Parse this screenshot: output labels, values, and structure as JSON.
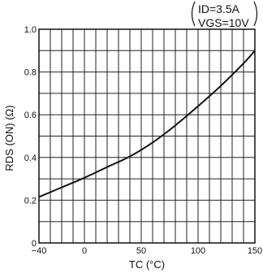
{
  "chart_data": {
    "type": "line",
    "title": "",
    "conditions": [
      "ID=3.5A",
      "VGS=10V"
    ],
    "xlabel": "TC (°C)",
    "ylabel": "RDS (ON) (Ω)",
    "xlim": [
      -40,
      150
    ],
    "ylim": [
      0,
      1.0
    ],
    "x_tick_labels": [
      "−40",
      "0",
      "50",
      "100",
      "150"
    ],
    "y_tick_labels": [
      "0",
      "0.2",
      "0.4",
      "0.6",
      "0.8",
      "1.0"
    ],
    "grid": true,
    "series": [
      {
        "x": [
          -40,
          -20,
          0,
          20,
          40,
          60,
          80,
          100,
          120,
          140,
          150
        ],
        "y": [
          0.215,
          0.26,
          0.305,
          0.355,
          0.405,
          0.47,
          0.55,
          0.64,
          0.735,
          0.84,
          0.9
        ]
      }
    ]
  }
}
